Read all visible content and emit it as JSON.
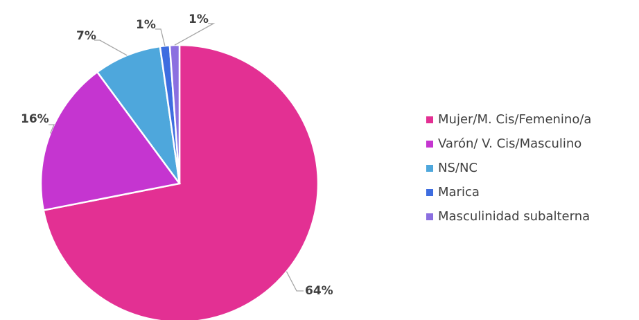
{
  "chart_data": {
    "type": "pie",
    "categories": [
      "Mujer/M. Cis/Femenino/a",
      "Varón/ V. Cis/Masculino",
      "NS/NC",
      "Marica",
      "Masculinidad subalterna"
    ],
    "values": [
      64,
      16,
      7,
      1,
      1
    ],
    "value_labels": [
      "64%",
      "16%",
      "7%",
      "1%",
      "1%"
    ],
    "colors": [
      "#e33093",
      "#c535d0",
      "#4ea7dc",
      "#3e6de0",
      "#8b6fe0"
    ],
    "legend": "right"
  }
}
